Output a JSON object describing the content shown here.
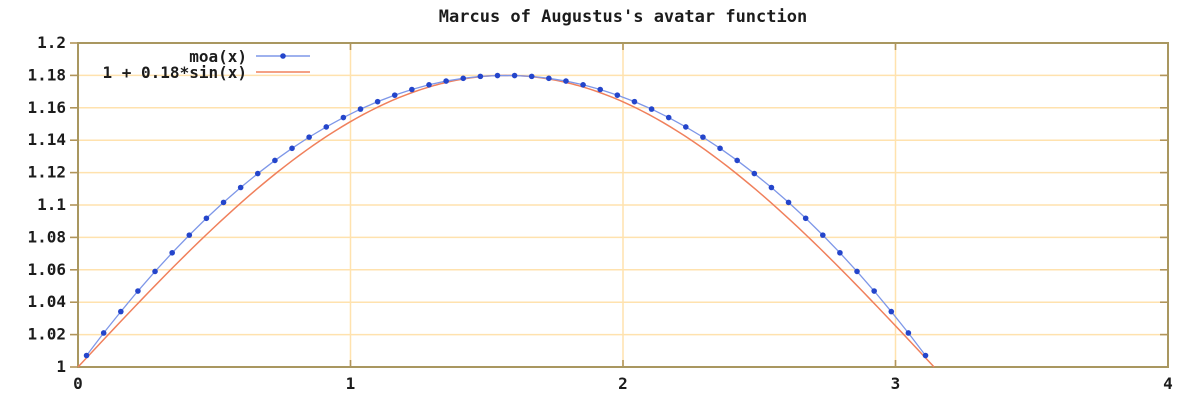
{
  "chart_data": {
    "type": "line",
    "title": "Marcus of Augustus's avatar function",
    "background": "#ffffff",
    "border_color": "#a99760",
    "grid_color": "#ffe2ae",
    "tick_color": "#b29559",
    "text_color": "#1c1c1c",
    "grid": true,
    "legend_position": "inside-top-left",
    "x_axis": {
      "range": [
        0,
        4
      ],
      "tick_values": [
        0,
        1,
        2,
        3,
        4
      ],
      "tick_labels": [
        "0",
        "1",
        "2",
        "3",
        "4"
      ]
    },
    "y_axis": {
      "range": [
        1,
        1.2
      ],
      "tick_step": 0.02,
      "tick_values": [
        1,
        1.02,
        1.04,
        1.06,
        1.08,
        1.1,
        1.12,
        1.14,
        1.16,
        1.18,
        1.2
      ],
      "tick_labels": [
        "1",
        "1.02",
        "1.04",
        "1.06",
        "1.08",
        "1.1",
        "1.12",
        "1.14",
        "1.16",
        "1.18",
        "1.2"
      ]
    },
    "series": [
      {
        "name": "moa(x)",
        "style": "linespoints",
        "marker": "filled-circle",
        "marker_size": 2.8,
        "color": "#2445cb",
        "line_color": "#7e97e8",
        "x": [
          0.0314,
          0.0942,
          0.1571,
          0.2199,
          0.2827,
          0.3456,
          0.4084,
          0.4712,
          0.5341,
          0.5969,
          0.6597,
          0.7226,
          0.7854,
          0.8482,
          0.9111,
          0.9739,
          1.0367,
          1.0996,
          1.1624,
          1.2252,
          1.2881,
          1.3509,
          1.4137,
          1.4765,
          1.5394,
          1.6022,
          1.665,
          1.7279,
          1.7907,
          1.8535,
          1.9164,
          1.9792,
          2.042,
          2.1049,
          2.1677,
          2.2305,
          2.2934,
          2.3562,
          2.419,
          2.4819,
          2.5447,
          2.6075,
          2.6704,
          2.7332,
          2.796,
          2.8588,
          2.9217,
          2.9845,
          3.0473,
          3.1102
        ],
        "y": [
          1.0071,
          1.021,
          1.0342,
          1.0469,
          1.059,
          1.0705,
          1.0814,
          1.0918,
          1.1016,
          1.1108,
          1.1194,
          1.1275,
          1.135,
          1.1419,
          1.1482,
          1.154,
          1.1592,
          1.1638,
          1.1678,
          1.1713,
          1.1742,
          1.1765,
          1.1782,
          1.1794,
          1.1799,
          1.1799,
          1.1794,
          1.1782,
          1.1765,
          1.1742,
          1.1713,
          1.1678,
          1.1638,
          1.1592,
          1.154,
          1.1482,
          1.1419,
          1.135,
          1.1275,
          1.1194,
          1.1108,
          1.1016,
          1.0918,
          1.0814,
          1.0705,
          1.059,
          1.0469,
          1.0342,
          1.021,
          1.0071
        ]
      },
      {
        "name": "1 + 0.18*sin(x)",
        "style": "line",
        "color": "#f0805c",
        "formula": {
          "fn": "sin",
          "offset": 1,
          "amplitude": 0.18
        },
        "domain": [
          0,
          3.14159
        ],
        "samples": 120
      }
    ]
  }
}
